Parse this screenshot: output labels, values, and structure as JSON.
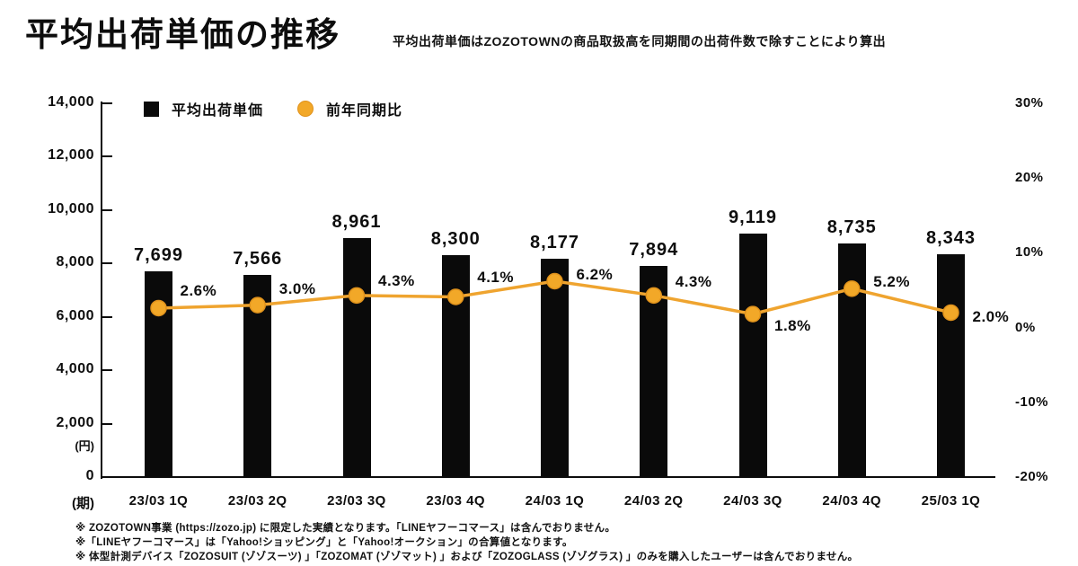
{
  "header": {
    "title": "平均出荷単価の推移",
    "subtitle": "平均出荷単価はZOZOTOWNの商品取扱高を同期間の出荷件数で除すことにより算出"
  },
  "legend": {
    "bar_label": "平均出荷単価",
    "line_label": "前年同期比"
  },
  "colors": {
    "bar": "#0a0a0a",
    "line": "#efa42f",
    "dot_fill": "#f2a828",
    "dot_stroke": "#e0921c",
    "text": "#0e0e0e"
  },
  "chart_data": {
    "type": "bar",
    "subtype": "bar+line combo, dual axis",
    "categories": [
      "23/03 1Q",
      "23/03 2Q",
      "23/03 3Q",
      "23/03 4Q",
      "24/03 1Q",
      "24/03 2Q",
      "24/03 3Q",
      "24/03 4Q",
      "25/03 1Q"
    ],
    "series": [
      {
        "name": "平均出荷単価",
        "type": "bar",
        "axis": "left",
        "values": [
          7699,
          7566,
          8961,
          8300,
          8177,
          7894,
          9119,
          8735,
          8343
        ],
        "labels": [
          "7,699",
          "7,566",
          "8,961",
          "8,300",
          "8,177",
          "7,894",
          "9,119",
          "8,735",
          "8,343"
        ]
      },
      {
        "name": "前年同期比",
        "type": "line",
        "axis": "right",
        "values": [
          2.6,
          3.0,
          4.3,
          4.1,
          6.2,
          4.3,
          1.8,
          5.2,
          2.0
        ],
        "labels": [
          "2.6%",
          "3.0%",
          "4.3%",
          "4.1%",
          "6.2%",
          "4.3%",
          "1.8%",
          "5.2%",
          "2.0%"
        ]
      }
    ],
    "left_axis": {
      "unit": "(円)",
      "min": 0,
      "max": 14000,
      "step": 2000,
      "tick_labels": [
        "0",
        "2,000",
        "4,000",
        "6,000",
        "8,000",
        "10,000",
        "12,000",
        "14,000"
      ]
    },
    "right_axis": {
      "min": -20,
      "max": 30,
      "step": 10,
      "tick_labels": [
        "-20%",
        "-10%",
        "0%",
        "10%",
        "20%",
        "30%"
      ]
    },
    "x_axis_unit": "(期)",
    "grid": false,
    "legend_position": "top-left inside plot"
  },
  "footnotes": [
    "※ ZOZOTOWN事業 (https://zozo.jp) に限定した実績となります。「LINEヤフーコマース」は含んでおりません。",
    "※「LINEヤフーコマース」は「Yahoo!ショッピング」と「Yahoo!オークション」の合算値となります。",
    "※ 体型計測デバイス「ZOZOSUIT (ゾゾスーツ) 」「ZOZOMAT (ゾゾマット) 」および「ZOZOGLASS (ゾゾグラス) 」のみを購入したユーザーは含んでおりません。"
  ]
}
